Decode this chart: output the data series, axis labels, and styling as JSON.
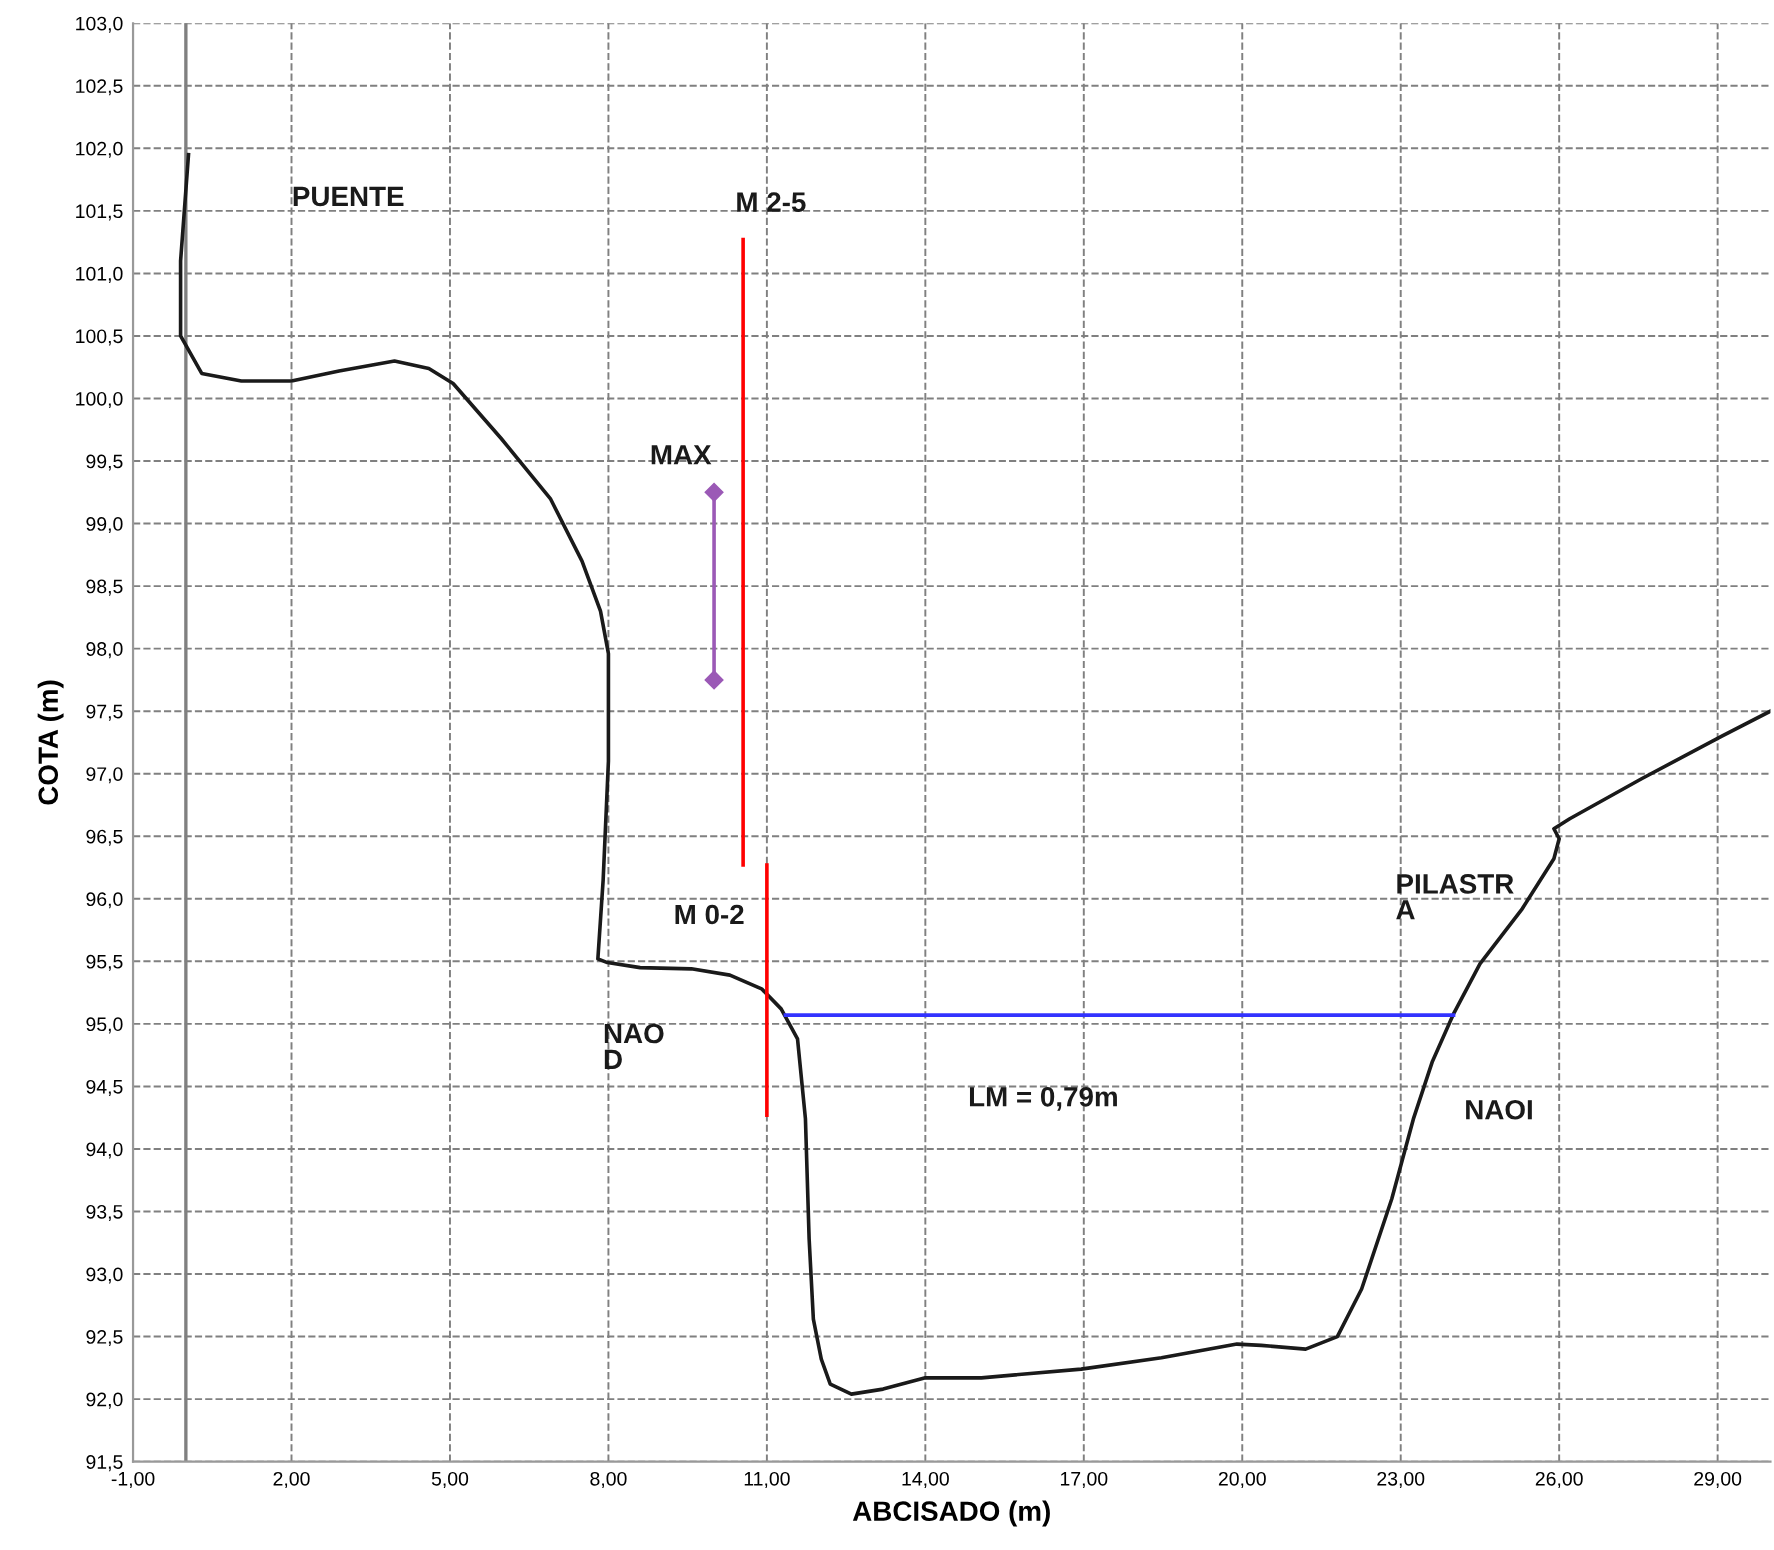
{
  "chart_data": {
    "type": "line",
    "xlabel": "ABCISADO (m)",
    "ylabel": "COTA (m)",
    "xlim": [
      -1,
      30
    ],
    "ylim": [
      91.5,
      103
    ],
    "xticks": [
      {
        "value": -1,
        "label": "-1,00"
      },
      {
        "value": 2,
        "label": "2,00"
      },
      {
        "value": 5,
        "label": "5,00"
      },
      {
        "value": 8,
        "label": "8,00"
      },
      {
        "value": 11,
        "label": "11,00"
      },
      {
        "value": 14,
        "label": "14,00"
      },
      {
        "value": 17,
        "label": "17,00"
      },
      {
        "value": 20,
        "label": "20,00"
      },
      {
        "value": 23,
        "label": "23,00"
      },
      {
        "value": 26,
        "label": "26,00"
      },
      {
        "value": 29,
        "label": "29,00"
      }
    ],
    "yticks": [
      {
        "value": 91.5,
        "label": "91,5"
      },
      {
        "value": 92,
        "label": "92,0"
      },
      {
        "value": 92.5,
        "label": "92,5"
      },
      {
        "value": 93,
        "label": "93,0"
      },
      {
        "value": 93.5,
        "label": "93,5"
      },
      {
        "value": 94,
        "label": "94,0"
      },
      {
        "value": 94.5,
        "label": "94,5"
      },
      {
        "value": 95,
        "label": "95,0"
      },
      {
        "value": 95.5,
        "label": "95,5"
      },
      {
        "value": 96,
        "label": "96,0"
      },
      {
        "value": 96.5,
        "label": "96,5"
      },
      {
        "value": 97,
        "label": "97,0"
      },
      {
        "value": 97.5,
        "label": "97,5"
      },
      {
        "value": 98,
        "label": "98,0"
      },
      {
        "value": 98.5,
        "label": "98,5"
      },
      {
        "value": 99,
        "label": "99,0"
      },
      {
        "value": 99.5,
        "label": "99,5"
      },
      {
        "value": 100,
        "label": "100,0"
      },
      {
        "value": 100.5,
        "label": "100,5"
      },
      {
        "value": 101,
        "label": "101,0"
      },
      {
        "value": 101.5,
        "label": "101,5"
      },
      {
        "value": 102,
        "label": "102,0"
      },
      {
        "value": 102.5,
        "label": "102,5"
      },
      {
        "value": 103,
        "label": "103,0"
      }
    ],
    "grid": true,
    "legend": false,
    "line_style": "solid",
    "ref_lines": [
      {
        "axis": "x",
        "value": 0,
        "label": null,
        "color": "#808080"
      }
    ],
    "series": [
      {
        "color": "#1a1a1a",
        "marker": "none",
        "x": [
          0.05,
          -0.1,
          -0.1,
          0.3,
          1.05,
          2.0,
          2.9,
          3.95,
          4.6,
          5.06,
          5.97,
          6.9,
          7.5,
          7.85,
          8.0,
          8.0,
          7.9,
          7.8,
          7.98,
          8.6,
          9.57,
          10.3,
          10.9,
          11.27,
          11.58,
          11.73,
          11.8,
          11.88,
          12.03,
          12.2,
          12.6,
          13.2,
          14.0,
          15.06,
          16.95,
          18.47,
          19.9,
          20.36,
          21.2,
          21.8,
          22.26,
          22.83,
          23.24,
          23.6,
          24.0,
          24.5,
          25.3,
          25.9,
          26.0,
          25.9,
          26.2,
          27.56,
          29.08,
          30.0
        ],
        "values": [
          101.95,
          101.1,
          100.5,
          100.2,
          100.14,
          100.14,
          100.22,
          100.3,
          100.24,
          100.12,
          99.68,
          99.2,
          98.7,
          98.3,
          97.96,
          97.1,
          96.15,
          95.52,
          95.49,
          95.45,
          95.44,
          95.39,
          95.28,
          95.12,
          94.88,
          94.24,
          93.28,
          92.64,
          92.32,
          92.12,
          92.04,
          92.08,
          92.17,
          92.17,
          92.24,
          92.33,
          92.44,
          92.43,
          92.4,
          92.5,
          92.88,
          93.6,
          94.24,
          94.7,
          95.08,
          95.48,
          95.92,
          96.32,
          96.48,
          96.56,
          96.64,
          96.96,
          97.3,
          97.5
        ]
      },
      {
        "color": "#3333ff",
        "marker": "none",
        "x": [
          11.35,
          24.0
        ],
        "values": [
          95.07,
          95.07
        ]
      },
      {
        "name": "MAX",
        "color": "#9b59b6",
        "marker": "diamond",
        "x": [
          10.0,
          10.0
        ],
        "values": [
          97.75,
          99.25
        ]
      },
      {
        "name": "M 2-5",
        "color": "#ff0000",
        "marker": "none",
        "x": [
          10.55,
          10.55
        ],
        "values": [
          96.27,
          101.27
        ]
      },
      {
        "name": "M 0-2",
        "color": "#ff0000",
        "marker": "none",
        "x": [
          11.0,
          11.0
        ],
        "values": [
          94.27,
          96.27
        ]
      }
    ],
    "annotations": [
      "PUENTE",
      "NAO\nD",
      "PILASTR\nA",
      "LM = 0,79m",
      "NAOI"
    ]
  }
}
